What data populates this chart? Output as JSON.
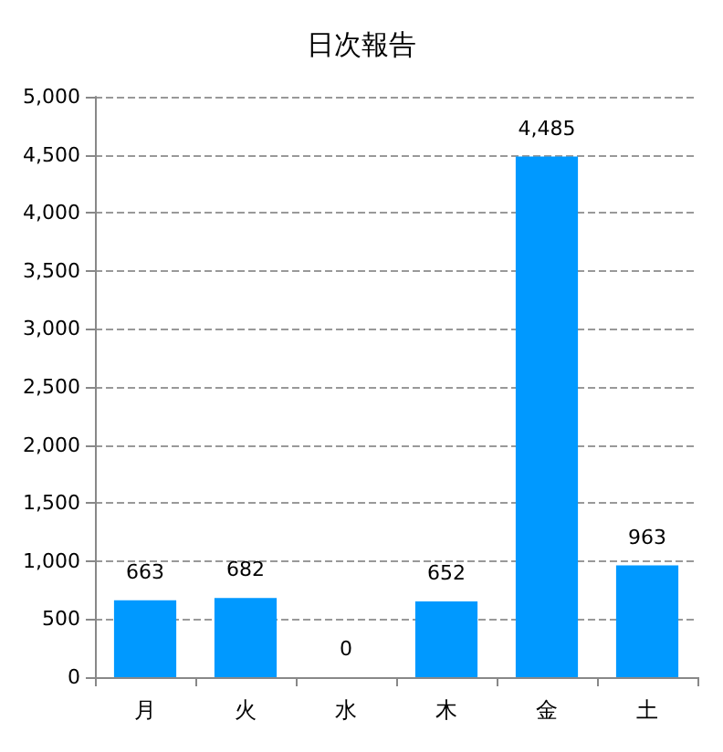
{
  "chart_data": {
    "type": "bar",
    "title": "日次報告",
    "categories": [
      "月",
      "火",
      "水",
      "木",
      "金",
      "土"
    ],
    "values": [
      663,
      682,
      0,
      652,
      4485,
      963
    ],
    "value_labels": [
      "663",
      "682",
      "0",
      "652",
      "4,485",
      "963"
    ],
    "color": "#0099ff",
    "ylim": [
      0,
      5000
    ],
    "yticks": [
      0,
      500,
      {
        "value": 1000,
        "label": "1,000"
      },
      {
        "value": 1500,
        "label": "1,500"
      },
      {
        "value": 2000,
        "label": "2,000"
      },
      {
        "value": 2500,
        "label": "2,500"
      },
      {
        "value": 3000,
        "label": "3,000"
      },
      {
        "value": 3500,
        "label": "3,500"
      },
      {
        "value": 4000,
        "label": "4,000"
      },
      {
        "value": 4500,
        "label": "4,500"
      },
      {
        "value": 5000,
        "label": "5,000"
      }
    ],
    "grid": "y"
  }
}
